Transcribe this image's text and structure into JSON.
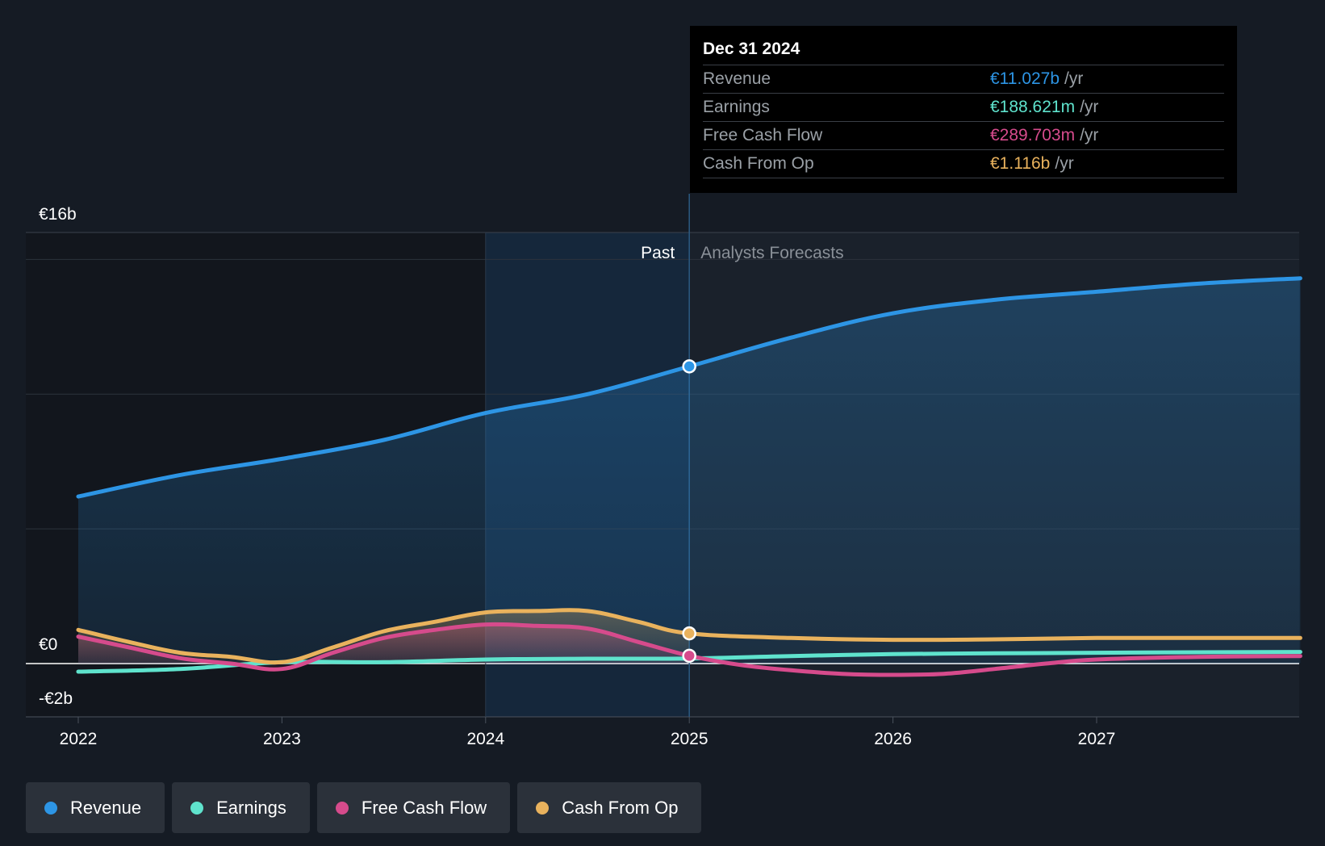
{
  "tooltip": {
    "date": "Dec 31 2024",
    "rows": [
      {
        "label": "Revenue",
        "value": "€11.027b",
        "unit": "/yr",
        "color": "#2d95e5"
      },
      {
        "label": "Earnings",
        "value": "€188.621m",
        "unit": "/yr",
        "color": "#5fe3cd"
      },
      {
        "label": "Free Cash Flow",
        "value": "€289.703m",
        "unit": "/yr",
        "color": "#d64b8c"
      },
      {
        "label": "Cash From Op",
        "value": "€1.116b",
        "unit": "/yr",
        "color": "#e9b25d"
      }
    ]
  },
  "legend": [
    {
      "label": "Revenue",
      "color": "#2d95e5"
    },
    {
      "label": "Earnings",
      "color": "#5fe3cd"
    },
    {
      "label": "Free Cash Flow",
      "color": "#d64b8c"
    },
    {
      "label": "Cash From Op",
      "color": "#e9b25d"
    }
  ],
  "chart_data": {
    "type": "line",
    "y_unit": "€b",
    "ylim": [
      -2,
      16
    ],
    "xlim": [
      2021.75,
      2028.0
    ],
    "y_tick_labels": [
      {
        "value": 16,
        "label": "€16b"
      },
      {
        "value": 0,
        "label": "€0"
      },
      {
        "value": -2,
        "label": "-€2b"
      }
    ],
    "x_ticks": [
      {
        "value": 2022,
        "label": "2022"
      },
      {
        "value": 2023,
        "label": "2023"
      },
      {
        "value": 2024,
        "label": "2024"
      },
      {
        "value": 2025,
        "label": "2025"
      },
      {
        "value": 2026,
        "label": "2026"
      },
      {
        "value": 2027,
        "label": "2027"
      }
    ],
    "gridlines": [
      0,
      5,
      10,
      15
    ],
    "past_label": "Past",
    "forecast_label": "Analysts Forecasts",
    "divider_x": 2025.0,
    "highlight_start_x": 2024.0,
    "series": [
      {
        "name": "Revenue",
        "color": "#2d95e5",
        "points": [
          [
            2022.0,
            6.2
          ],
          [
            2022.5,
            7.0
          ],
          [
            2023.0,
            7.6
          ],
          [
            2023.5,
            8.3
          ],
          [
            2024.0,
            9.3
          ],
          [
            2024.5,
            10.0
          ],
          [
            2025.0,
            11.03
          ],
          [
            2025.5,
            12.1
          ],
          [
            2026.0,
            13.0
          ],
          [
            2026.5,
            13.5
          ],
          [
            2027.0,
            13.8
          ],
          [
            2027.5,
            14.1
          ],
          [
            2028.0,
            14.3
          ]
        ]
      },
      {
        "name": "Earnings",
        "color": "#5fe3cd",
        "points": [
          [
            2022.0,
            -0.3
          ],
          [
            2022.5,
            -0.2
          ],
          [
            2023.0,
            0.05
          ],
          [
            2023.5,
            0.05
          ],
          [
            2024.0,
            0.15
          ],
          [
            2024.5,
            0.18
          ],
          [
            2025.0,
            0.19
          ],
          [
            2025.5,
            0.28
          ],
          [
            2026.0,
            0.35
          ],
          [
            2026.5,
            0.38
          ],
          [
            2027.0,
            0.4
          ],
          [
            2027.5,
            0.42
          ],
          [
            2028.0,
            0.43
          ]
        ]
      },
      {
        "name": "Free Cash Flow",
        "color": "#d64b8c",
        "points": [
          [
            2022.0,
            1.0
          ],
          [
            2022.25,
            0.6
          ],
          [
            2022.5,
            0.2
          ],
          [
            2022.75,
            0.0
          ],
          [
            2023.0,
            -0.2
          ],
          [
            2023.25,
            0.4
          ],
          [
            2023.5,
            0.95
          ],
          [
            2023.75,
            1.25
          ],
          [
            2024.0,
            1.45
          ],
          [
            2024.25,
            1.4
          ],
          [
            2024.5,
            1.3
          ],
          [
            2024.75,
            0.8
          ],
          [
            2025.0,
            0.29
          ],
          [
            2025.25,
            -0.05
          ],
          [
            2025.5,
            -0.25
          ],
          [
            2025.75,
            -0.38
          ],
          [
            2026.0,
            -0.42
          ],
          [
            2026.25,
            -0.38
          ],
          [
            2026.5,
            -0.2
          ],
          [
            2026.75,
            0.0
          ],
          [
            2027.0,
            0.15
          ],
          [
            2027.5,
            0.25
          ],
          [
            2028.0,
            0.28
          ]
        ]
      },
      {
        "name": "Cash From Op",
        "color": "#e9b25d",
        "points": [
          [
            2022.0,
            1.25
          ],
          [
            2022.25,
            0.8
          ],
          [
            2022.5,
            0.4
          ],
          [
            2022.75,
            0.25
          ],
          [
            2023.0,
            0.05
          ],
          [
            2023.25,
            0.6
          ],
          [
            2023.5,
            1.2
          ],
          [
            2023.75,
            1.55
          ],
          [
            2024.0,
            1.9
          ],
          [
            2024.25,
            1.95
          ],
          [
            2024.5,
            1.95
          ],
          [
            2024.75,
            1.55
          ],
          [
            2025.0,
            1.12
          ],
          [
            2025.5,
            0.95
          ],
          [
            2026.0,
            0.88
          ],
          [
            2026.5,
            0.9
          ],
          [
            2027.0,
            0.95
          ],
          [
            2027.5,
            0.95
          ],
          [
            2028.0,
            0.95
          ]
        ]
      }
    ],
    "markers": [
      {
        "series": "Revenue",
        "x": 2025.0,
        "y": 11.03
      },
      {
        "series": "Cash From Op",
        "x": 2025.0,
        "y": 1.12
      },
      {
        "series": "Free Cash Flow",
        "x": 2025.0,
        "y": 0.29
      }
    ]
  }
}
